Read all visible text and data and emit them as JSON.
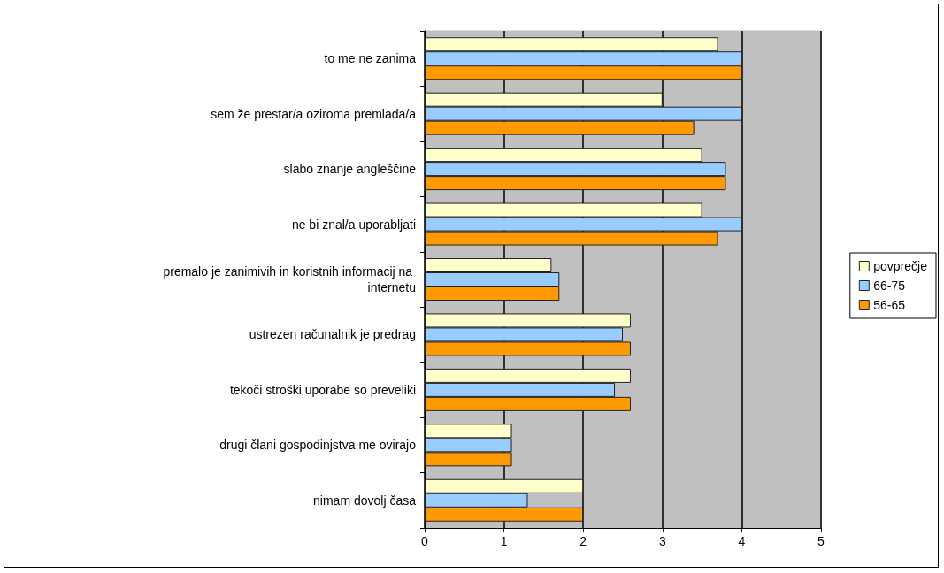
{
  "chart_data": {
    "type": "bar",
    "orientation": "horizontal",
    "categories": [
      "to me ne zanima",
      "sem že prestar/a oziroma premlada/a",
      "slabo znanje angleščine",
      "ne bi znal/a uporabljati",
      "premalo je zanimivih in koristnih informacij na internetu",
      "ustrezen računalnik je predrag",
      "tekoči stroški uporabe so preveliki",
      "drugi člani gospodinjstva me ovirajo",
      "nimam dovolj časa"
    ],
    "series": [
      {
        "name": "povprečje",
        "color": "#ffffcc",
        "values": [
          3.7,
          3.0,
          3.5,
          3.5,
          1.6,
          2.6,
          2.6,
          1.1,
          2.0
        ]
      },
      {
        "name": "66-75",
        "color": "#99ccff",
        "values": [
          4.0,
          4.0,
          3.8,
          4.0,
          1.7,
          2.5,
          2.4,
          1.1,
          1.3
        ]
      },
      {
        "name": "56-65",
        "color": "#ff9900",
        "values": [
          4.0,
          3.4,
          3.8,
          3.7,
          1.7,
          2.6,
          2.6,
          1.1,
          2.0
        ]
      }
    ],
    "xlim": [
      0,
      5
    ],
    "xticks": [
      0,
      1,
      2,
      3,
      4,
      5
    ],
    "grid": "x",
    "legend": "right"
  }
}
